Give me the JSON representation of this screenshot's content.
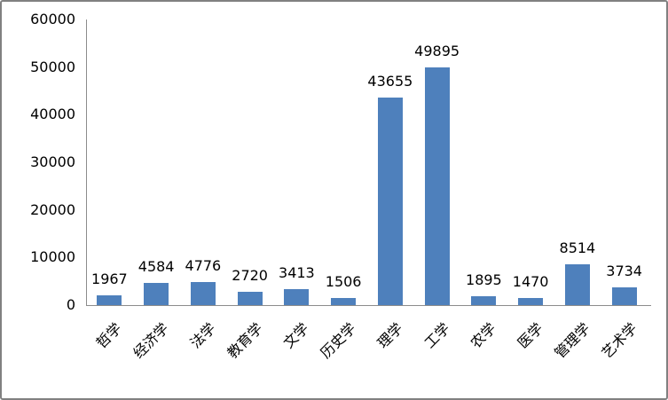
{
  "chart_data": {
    "type": "bar",
    "title": "",
    "xlabel": "",
    "ylabel": "",
    "categories": [
      "哲学",
      "经济学",
      "法学",
      "教育学",
      "文学",
      "历史学",
      "理学",
      "工学",
      "农学",
      "医学",
      "管理学",
      "艺术学"
    ],
    "values": [
      1967,
      4584,
      4776,
      2720,
      3413,
      1506,
      43655,
      49895,
      1895,
      1470,
      8514,
      3734
    ],
    "ylim": [
      0,
      60000
    ],
    "yticks": [
      0,
      10000,
      20000,
      30000,
      40000,
      50000,
      60000
    ],
    "grid": false,
    "legend_position": "none",
    "data_labels": "outside-end",
    "category_label_rotation_deg": 45,
    "bar_color": "#4E80BC",
    "axis_line_color": "#8C8C8C",
    "frame_border_color": "#808080",
    "text_color": "#000000",
    "background_color": "#FFFFFF"
  }
}
